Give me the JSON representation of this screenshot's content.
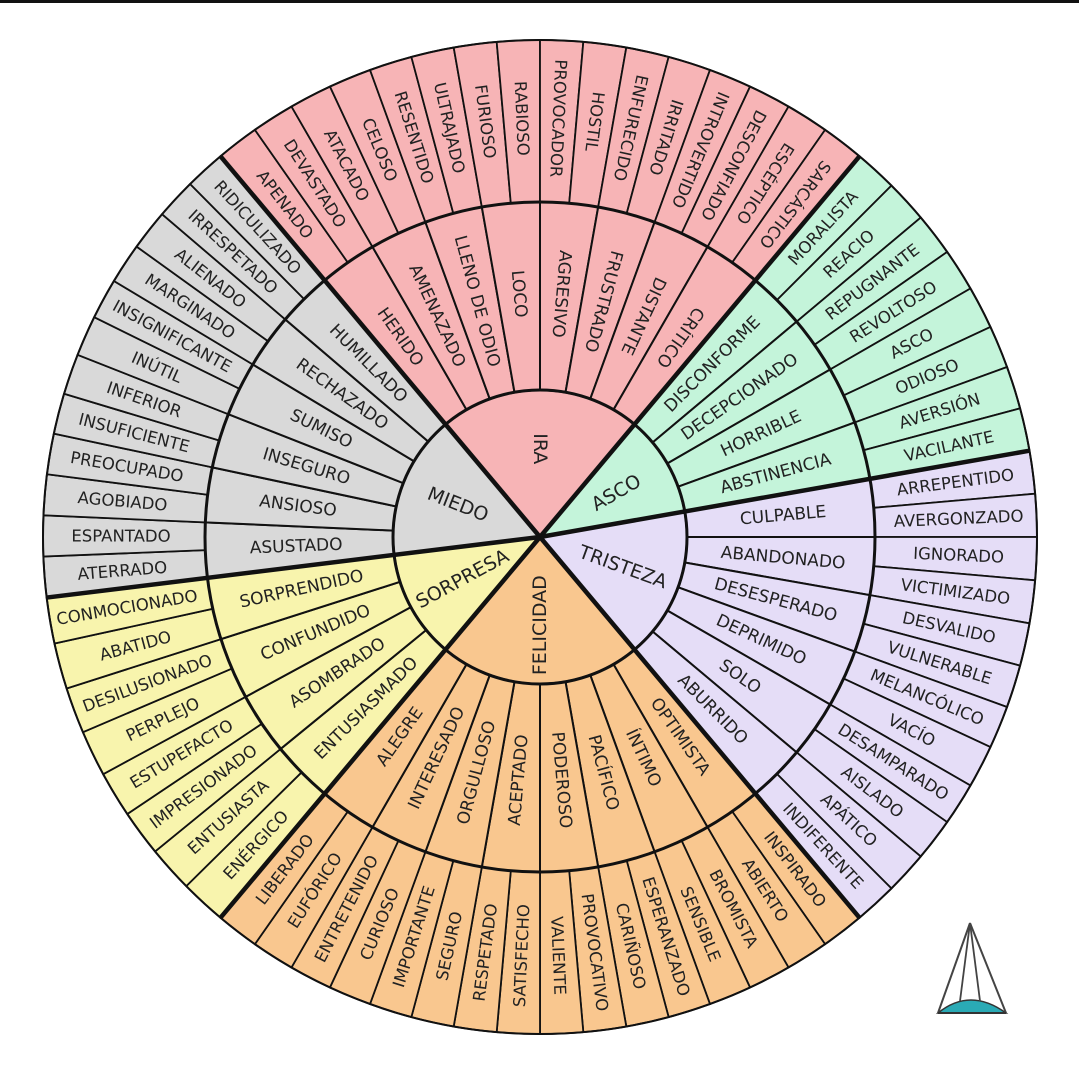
{
  "wheel": {
    "sectors": [
      {
        "label": "IRA",
        "color": "#f7b4b6",
        "start": -40,
        "end": 40,
        "middle": [
          {
            "label": "HERIDO",
            "outer": [
              "APENADO",
              "DEVASTADO"
            ]
          },
          {
            "label": "AMENAZADO",
            "outer": [
              "ATACADO",
              "CELOSO"
            ]
          },
          {
            "label": "LLENO DE ODIO",
            "outer": [
              "RESENTIDO",
              "ULTRAJADO"
            ]
          },
          {
            "label": "LOCO",
            "outer": [
              "FURIOSO",
              "RABIOSO"
            ]
          },
          {
            "label": "AGRESIVO",
            "outer": [
              "PROVOCADOR",
              "HOSTIL"
            ]
          },
          {
            "label": "FRUSTRADO",
            "outer": [
              "ENFURECIDO",
              "IRRITADO"
            ]
          },
          {
            "label": "DISTANTE",
            "outer": [
              "INTROVERTIDO",
              "DESCONFIADO"
            ]
          },
          {
            "label": "CRÍTICO",
            "outer": [
              "ESCÉPTICO",
              "SARCÁSTICO"
            ]
          }
        ]
      },
      {
        "label": "ASCO",
        "color": "#c4f4da",
        "start": 40,
        "end": 80,
        "middle": [
          {
            "label": "DISCONFORME",
            "outer": [
              "MORALISTA",
              "REACIO"
            ]
          },
          {
            "label": "DECEPCIONADO",
            "outer": [
              "REPUGNANTE",
              "REVOLTOSO"
            ]
          },
          {
            "label": "HORRIBLE",
            "outer": [
              "ASCO",
              "ODIOSO"
            ]
          },
          {
            "label": "ABSTINENCIA",
            "outer": [
              "AVERSIÓN",
              "VACILANTE"
            ]
          }
        ]
      },
      {
        "label": "TRISTEZA",
        "color": "#e5ddf7",
        "start": 80,
        "end": 140,
        "middle": [
          {
            "label": "CULPABLE",
            "outer": [
              "ARREPENTIDO",
              "AVERGONZADO"
            ]
          },
          {
            "label": "ABANDONADO",
            "outer": [
              "IGNORADO",
              "VICTIMIZADO"
            ]
          },
          {
            "label": "DESESPERADO",
            "outer": [
              "DESVALIDO",
              "VULNERABLE"
            ]
          },
          {
            "label": "DEPRIMIDO",
            "outer": [
              "MELANCÓLICO",
              "VACÍO"
            ]
          },
          {
            "label": "SOLO",
            "outer": [
              "DESAMPARADO",
              "AISLADO"
            ]
          },
          {
            "label": "ABURRIDO",
            "outer": [
              "APÁTICO",
              "INDIFERENTE"
            ]
          }
        ]
      },
      {
        "label": "FELICIDAD",
        "color": "#f9c78f",
        "start": 140,
        "end": 220,
        "middle": [
          {
            "label": "OPTIMISTA",
            "outer": [
              "INSPIRADO",
              "ABIERTO"
            ]
          },
          {
            "label": "ÍNTIMO",
            "outer": [
              "BROMISTA",
              "SENSIBLE"
            ]
          },
          {
            "label": "PACÍFICO",
            "outer": [
              "ESPERANZADO",
              "CARIÑOSO"
            ]
          },
          {
            "label": "PODEROSO",
            "outer": [
              "PROVOCATIVO",
              "VALIENTE"
            ]
          },
          {
            "label": "ACEPTADO",
            "outer": [
              "SATISFECHO",
              "RESPETADO"
            ]
          },
          {
            "label": "ORGULLOSO",
            "outer": [
              "SEGURO",
              "IMPORTANTE"
            ]
          },
          {
            "label": "INTERESADO",
            "outer": [
              "CURIOSO",
              "ENTRETENIDO"
            ]
          },
          {
            "label": "ALEGRE",
            "outer": [
              "EUFÓRICO",
              "LIBERADO"
            ]
          }
        ]
      },
      {
        "label": "SORPRESA",
        "color": "#f8f4ad",
        "start": 220,
        "end": 263,
        "middle": [
          {
            "label": "ENTUSIASMADO",
            "outer": [
              "ENÉRGICO",
              "ENTUSIASTA"
            ]
          },
          {
            "label": "ASOMBRADO",
            "outer": [
              "IMPRESIONADO",
              "ESTUPEFACTO"
            ]
          },
          {
            "label": "CONFUNDIDO",
            "outer": [
              "PERPLEJO",
              "DESILUSIONADO"
            ]
          },
          {
            "label": "SORPRENDIDO",
            "outer": [
              "ABATIDO",
              "CONMOCIONADO"
            ]
          }
        ]
      },
      {
        "label": "MIEDO",
        "color": "#d9d9d9",
        "start": 263,
        "end": 320,
        "middle": [
          {
            "label": "ASUSTADO",
            "outer": [
              "ATERRADO",
              "ESPANTADO"
            ]
          },
          {
            "label": "ANSIOSO",
            "outer": [
              "AGOBIADO",
              "PREOCUPADO"
            ]
          },
          {
            "label": "INSEGURO",
            "outer": [
              "INSUFICIENTE",
              "INFERIOR"
            ]
          },
          {
            "label": "SUMISO",
            "outer": [
              "INÚTIL",
              "INSIGNIFICANTE"
            ]
          },
          {
            "label": "RECHAZADO",
            "outer": [
              "MARGINADO",
              "ALIENADO"
            ]
          },
          {
            "label": "HUMILLADO",
            "outer": [
              "IRRESPETADO",
              "RIDICULIZADO"
            ]
          }
        ]
      }
    ]
  },
  "logo": {
    "icon": "pyramid-dome-logo-icon",
    "color": "#2aaab5"
  }
}
